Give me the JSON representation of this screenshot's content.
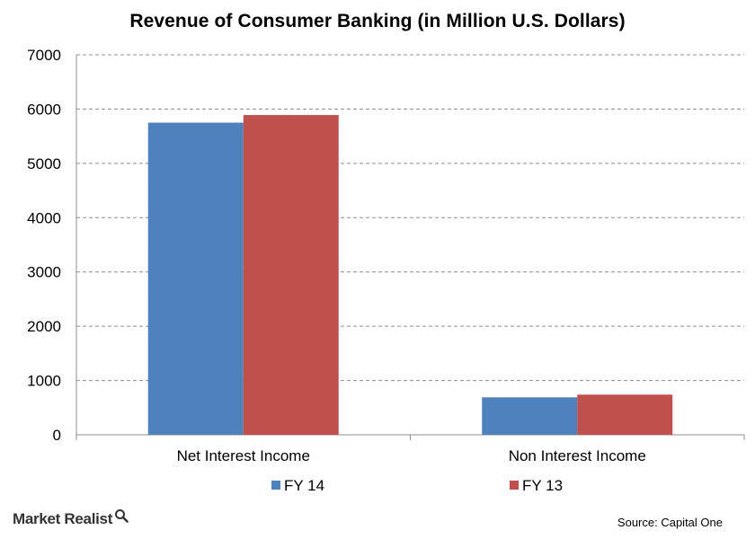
{
  "chart_data": {
    "type": "bar",
    "title": "Revenue of Consumer Banking (in Million U.S. Dollars)",
    "categories": [
      "Net Interest Income",
      "Non Interest Income"
    ],
    "series": [
      {
        "name": "FY 14",
        "color": "#4f81bd",
        "values": [
          5750,
          690
        ]
      },
      {
        "name": "FY 13",
        "color": "#c0504d",
        "values": [
          5890,
          740
        ]
      }
    ],
    "y_ticks": [
      "0",
      "1000",
      "2000",
      "3000",
      "4000",
      "5000",
      "6000",
      "7000"
    ],
    "ylim": [
      0,
      7000
    ],
    "grid": "horizontal dashed",
    "legend_position": "bottom"
  },
  "footer": {
    "brand": "Market Realist",
    "brand_icon": "magnifier-icon",
    "source": "Source: Capital One"
  }
}
